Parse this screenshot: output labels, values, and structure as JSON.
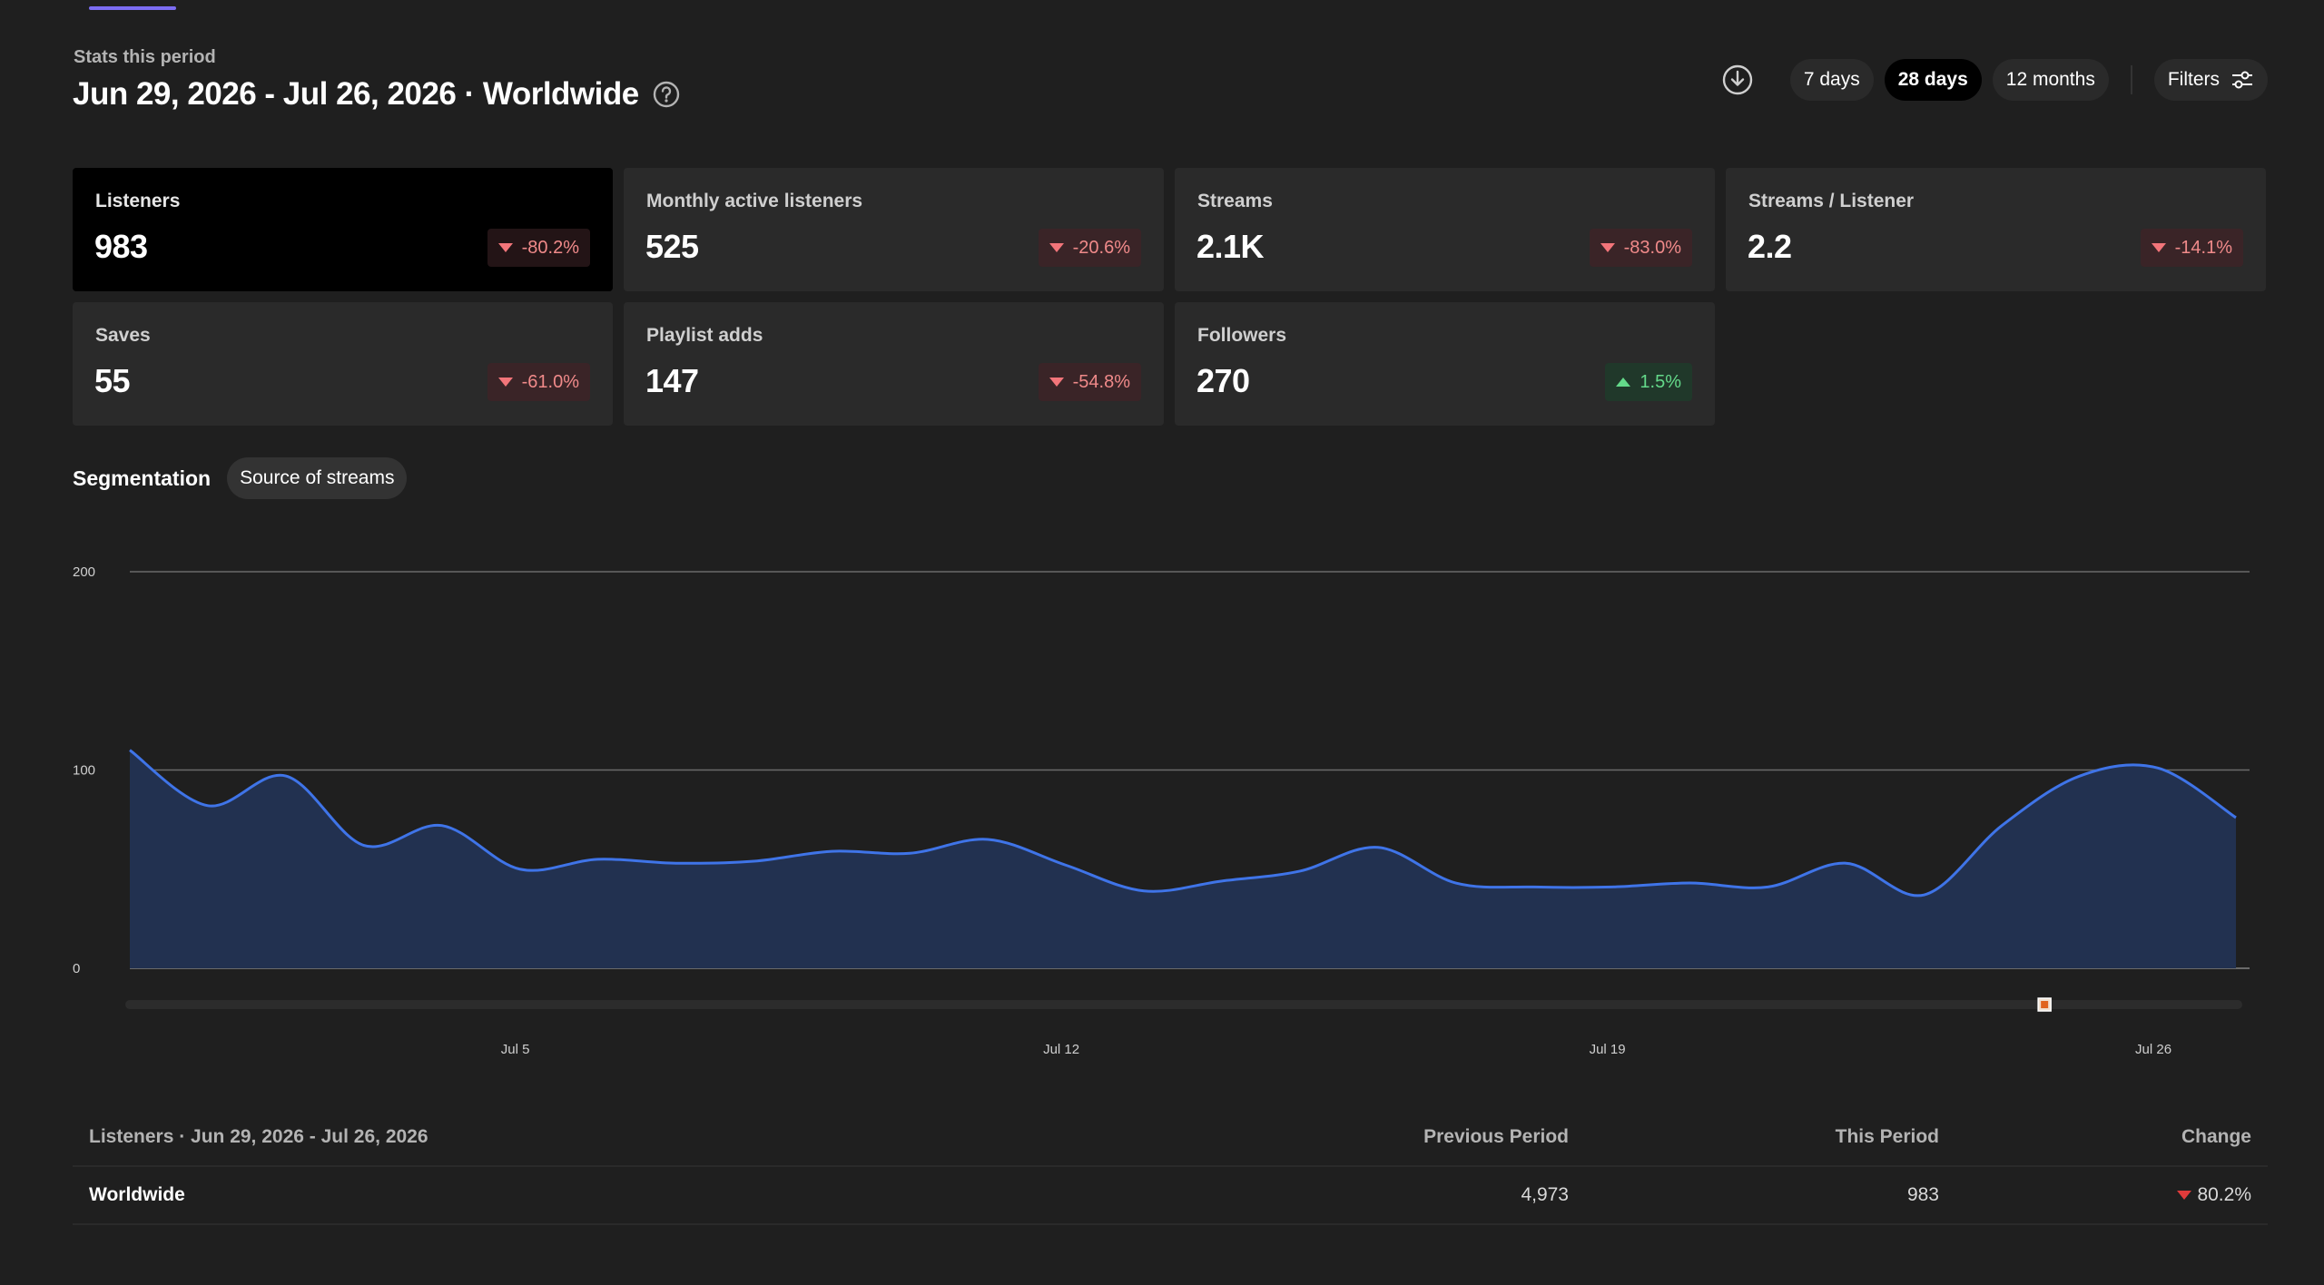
{
  "header": {
    "period_label": "Stats this period",
    "title": "Jun 29, 2026 - Jul 26, 2026 · Worldwide",
    "help_icon": "question-circle-icon"
  },
  "controls": {
    "download_icon": "download-circle-icon",
    "ranges": [
      {
        "label": "7 days",
        "active": false
      },
      {
        "label": "28 days",
        "active": true
      },
      {
        "label": "12 months",
        "active": false
      }
    ],
    "filters_label": "Filters",
    "filters_icon": "sliders-icon"
  },
  "metrics": [
    {
      "label": "Listeners",
      "value": "983",
      "change": "-80.2%",
      "direction": "down",
      "selected": true
    },
    {
      "label": "Monthly active listeners",
      "value": "525",
      "change": "-20.6%",
      "direction": "down",
      "selected": false
    },
    {
      "label": "Streams",
      "value": "2.1K",
      "change": "-83.0%",
      "direction": "down",
      "selected": false
    },
    {
      "label": "Streams / Listener",
      "value": "2.2",
      "change": "-14.1%",
      "direction": "down",
      "selected": false
    },
    {
      "label": "Saves",
      "value": "55",
      "change": "-61.0%",
      "direction": "down",
      "selected": false
    },
    {
      "label": "Playlist adds",
      "value": "147",
      "change": "-54.8%",
      "direction": "down",
      "selected": false
    },
    {
      "label": "Followers",
      "value": "270",
      "change": "1.5%",
      "direction": "up",
      "selected": false
    }
  ],
  "segmentation": {
    "title": "Segmentation",
    "chip": "Source of streams"
  },
  "colors": {
    "line": "#3f74e8",
    "area": "#223150",
    "grid": "#6a6a6a",
    "marker": "#e0641e",
    "negative": "#f2757a",
    "positive": "#64d98a"
  },
  "chart_data": {
    "type": "area",
    "ylim": [
      0,
      200
    ],
    "y_ticks": [
      "200",
      "100",
      "0"
    ],
    "x_tick_labels": [
      {
        "label": "Jul 5",
        "day": 6
      },
      {
        "label": "Jul 12",
        "day": 13
      },
      {
        "label": "Jul 19",
        "day": 20
      },
      {
        "label": "Jul 26",
        "day": 27
      }
    ],
    "x": [
      "Jun 29",
      "Jun 30",
      "Jul 1",
      "Jul 2",
      "Jul 3",
      "Jul 4",
      "Jul 5",
      "Jul 6",
      "Jul 7",
      "Jul 8",
      "Jul 9",
      "Jul 10",
      "Jul 11",
      "Jul 12",
      "Jul 13",
      "Jul 14",
      "Jul 15",
      "Jul 16",
      "Jul 17",
      "Jul 18",
      "Jul 19",
      "Jul 20",
      "Jul 21",
      "Jul 22",
      "Jul 23",
      "Jul 24",
      "Jul 25",
      "Jul 26"
    ],
    "series": [
      {
        "values": [
          110,
          82,
          97,
          62,
          72,
          50,
          55,
          53,
          54,
          59,
          58,
          65,
          52,
          39,
          44,
          49,
          61,
          43,
          41,
          41,
          43,
          41,
          53,
          37,
          72,
          97,
          101,
          76
        ]
      }
    ],
    "marker_day": 26
  },
  "table": {
    "title": "Listeners · Jun 29, 2026 - Jul 26, 2026",
    "columns": [
      "Previous Period",
      "This Period",
      "Change"
    ],
    "rows": [
      {
        "name": "Worldwide",
        "previous": "4,973",
        "current": "983",
        "change": "80.2%"
      }
    ]
  }
}
